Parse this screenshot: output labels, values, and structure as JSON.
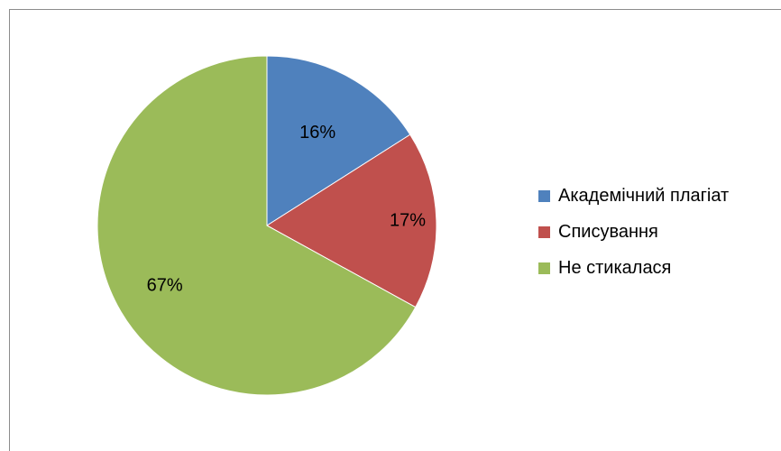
{
  "chart_data": {
    "type": "pie",
    "categories": [
      "Академічний плагіат",
      "Списування",
      "Не стикалася"
    ],
    "values": [
      16,
      17,
      67
    ],
    "data_labels": [
      "16%",
      "17%",
      "67%"
    ],
    "colors": [
      "#4f81bd",
      "#c0504d",
      "#9bbb59"
    ],
    "start_angle_deg": 0,
    "direction": "clockwise",
    "legend_position": "right"
  }
}
